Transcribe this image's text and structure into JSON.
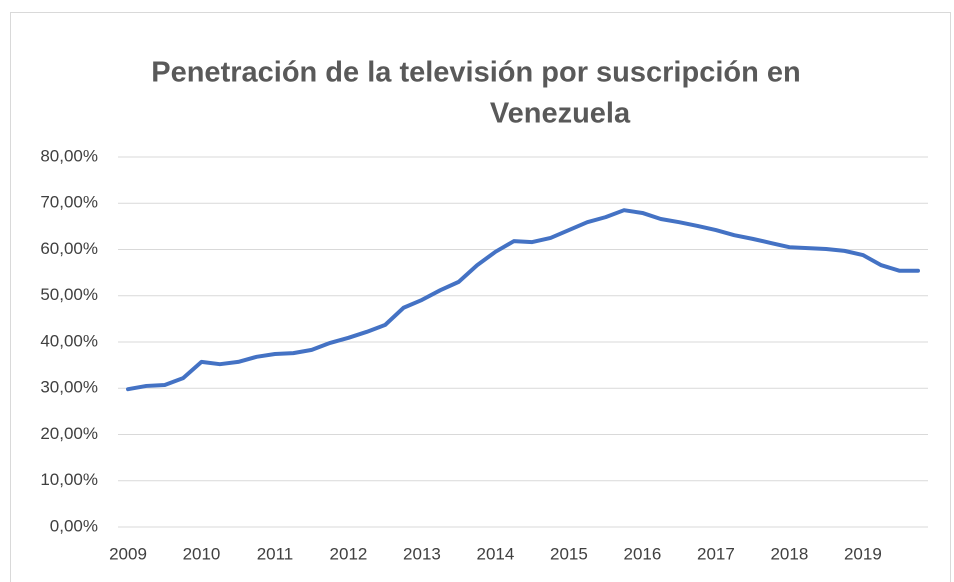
{
  "chart_data": {
    "type": "line",
    "title": [
      "Penetración de la televisión por suscripción en",
      "Venezuela"
    ],
    "categories": [
      "2009",
      null,
      null,
      null,
      "2010",
      null,
      null,
      null,
      "2011",
      null,
      null,
      null,
      "2012",
      null,
      null,
      null,
      "2013",
      null,
      null,
      null,
      "2014",
      null,
      null,
      null,
      "2015",
      null,
      null,
      null,
      "2016",
      null,
      null,
      null,
      "2017",
      null,
      null,
      null,
      "2018",
      null,
      null,
      null,
      "2019",
      null,
      null,
      null
    ],
    "series": [
      {
        "name": "Penetración",
        "color": "#4472c4",
        "values": [
          29.8,
          30.5,
          30.7,
          32.2,
          35.7,
          35.2,
          35.7,
          36.8,
          37.4,
          37.6,
          38.3,
          39.8,
          40.9,
          42.2,
          43.7,
          47.4,
          49.1,
          51.2,
          53.0,
          56.6,
          59.5,
          61.8,
          61.6,
          62.5,
          64.2,
          65.9,
          67.0,
          68.5,
          67.9,
          66.6,
          65.9,
          65.1,
          64.2,
          63.1,
          62.3,
          61.4,
          60.5,
          60.3,
          60.1,
          59.7,
          58.8,
          56.6,
          55.4,
          55.4
        ]
      }
    ],
    "ylim": [
      0,
      80
    ],
    "yticks": [
      {
        "value": 0,
        "label": "0,00%"
      },
      {
        "value": 10,
        "label": "10,00%"
      },
      {
        "value": 20,
        "label": "20,00%"
      },
      {
        "value": 30,
        "label": "30,00%"
      },
      {
        "value": 40,
        "label": "40,00%"
      },
      {
        "value": 50,
        "label": "50,00%"
      },
      {
        "value": 60,
        "label": "60,00%"
      },
      {
        "value": 70,
        "label": "70,00%"
      },
      {
        "value": 80,
        "label": "80,00%"
      }
    ],
    "grid": true
  }
}
